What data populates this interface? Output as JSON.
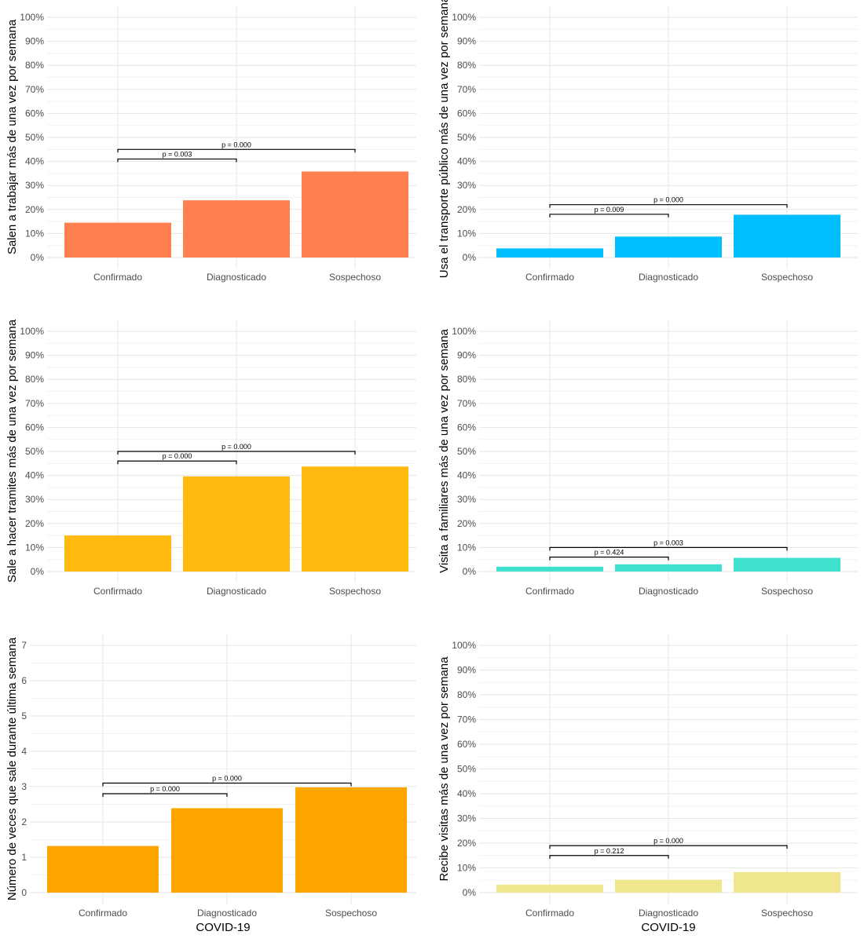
{
  "chart_data": [
    {
      "type": "bar",
      "categories": [
        "Confirmado",
        "Diagnosticado",
        "Sospechoso"
      ],
      "values": [
        14.5,
        23.8,
        35.8
      ],
      "ylabel": "Salen a trabajar más de una vez por semana",
      "xlabel": "",
      "ylim": [
        0,
        100
      ],
      "y_ticks": [
        "0%",
        "10%",
        "20%",
        "30%",
        "40%",
        "50%",
        "60%",
        "70%",
        "80%",
        "90%",
        "100%"
      ],
      "color": "#FF7F50",
      "comparisons": [
        {
          "from": "Confirmado",
          "to": "Diagnosticado",
          "label": "p = 0.003",
          "y": 41
        },
        {
          "from": "Confirmado",
          "to": "Sospechoso",
          "label": "p = 0.000",
          "y": 45
        }
      ]
    },
    {
      "type": "bar",
      "categories": [
        "Confirmado",
        "Diagnosticado",
        "Sospechoso"
      ],
      "values": [
        3.8,
        8.7,
        17.8
      ],
      "ylabel": "Usa el transporte público más de una vez por semana",
      "xlabel": "",
      "ylim": [
        0,
        100
      ],
      "y_ticks": [
        "0%",
        "10%",
        "20%",
        "30%",
        "40%",
        "50%",
        "60%",
        "70%",
        "80%",
        "90%",
        "100%"
      ],
      "color": "#00BFFF",
      "comparisons": [
        {
          "from": "Confirmado",
          "to": "Diagnosticado",
          "label": "p = 0.009",
          "y": 18
        },
        {
          "from": "Confirmado",
          "to": "Sospechoso",
          "label": "p = 0.000",
          "y": 22
        }
      ]
    },
    {
      "type": "bar",
      "categories": [
        "Confirmado",
        "Diagnosticado",
        "Sospechoso"
      ],
      "values": [
        15.0,
        39.6,
        43.7
      ],
      "ylabel": "Sale a hacer tramites más de una vez por semana",
      "xlabel": "",
      "ylim": [
        0,
        100
      ],
      "y_ticks": [
        "0%",
        "10%",
        "20%",
        "30%",
        "40%",
        "50%",
        "60%",
        "70%",
        "80%",
        "90%",
        "100%"
      ],
      "color": "#FFB90F",
      "comparisons": [
        {
          "from": "Confirmado",
          "to": "Diagnosticado",
          "label": "p = 0.000",
          "y": 46
        },
        {
          "from": "Confirmado",
          "to": "Sospechoso",
          "label": "p = 0.000",
          "y": 50
        }
      ]
    },
    {
      "type": "bar",
      "categories": [
        "Confirmado",
        "Diagnosticado",
        "Sospechoso"
      ],
      "values": [
        2.0,
        3.0,
        5.7
      ],
      "ylabel": "Visita a familiares más de una vez por semana",
      "xlabel": "",
      "ylim": [
        0,
        100
      ],
      "y_ticks": [
        "0%",
        "10%",
        "20%",
        "30%",
        "40%",
        "50%",
        "60%",
        "70%",
        "80%",
        "90%",
        "100%"
      ],
      "color": "#40E0D0",
      "comparisons": [
        {
          "from": "Confirmado",
          "to": "Diagnosticado",
          "label": "p = 0.424",
          "y": 6
        },
        {
          "from": "Confirmado",
          "to": "Sospechoso",
          "label": "p = 0.003",
          "y": 10
        }
      ]
    },
    {
      "type": "bar",
      "categories": [
        "Confirmado",
        "Diagnosticado",
        "Sospechoso"
      ],
      "values": [
        1.32,
        2.39,
        2.98
      ],
      "ylabel": "Número de veces que sale durante última semana",
      "xlabel": "COVID-19",
      "ylim": [
        0,
        7
      ],
      "y_ticks": [
        "0",
        "1",
        "2",
        "3",
        "4",
        "5",
        "6",
        "7"
      ],
      "color": "#FFA500",
      "comparisons": [
        {
          "from": "Confirmado",
          "to": "Diagnosticado",
          "label": "p = 0.000",
          "y": 2.8
        },
        {
          "from": "Confirmado",
          "to": "Sospechoso",
          "label": "p = 0.000",
          "y": 3.1
        }
      ]
    },
    {
      "type": "bar",
      "categories": [
        "Confirmado",
        "Diagnosticado",
        "Sospechoso"
      ],
      "values": [
        3.2,
        5.2,
        8.3
      ],
      "ylabel": "Recibe visitas más de una vez por semana",
      "xlabel": "COVID-19",
      "ylim": [
        0,
        100
      ],
      "y_ticks": [
        "0%",
        "10%",
        "20%",
        "30%",
        "40%",
        "50%",
        "60%",
        "70%",
        "80%",
        "90%",
        "100%"
      ],
      "color": "#F0E68C",
      "comparisons": [
        {
          "from": "Confirmado",
          "to": "Diagnosticado",
          "label": "p = 0.212",
          "y": 15
        },
        {
          "from": "Confirmado",
          "to": "Sospechoso",
          "label": "p = 0.000",
          "y": 19
        }
      ]
    }
  ]
}
